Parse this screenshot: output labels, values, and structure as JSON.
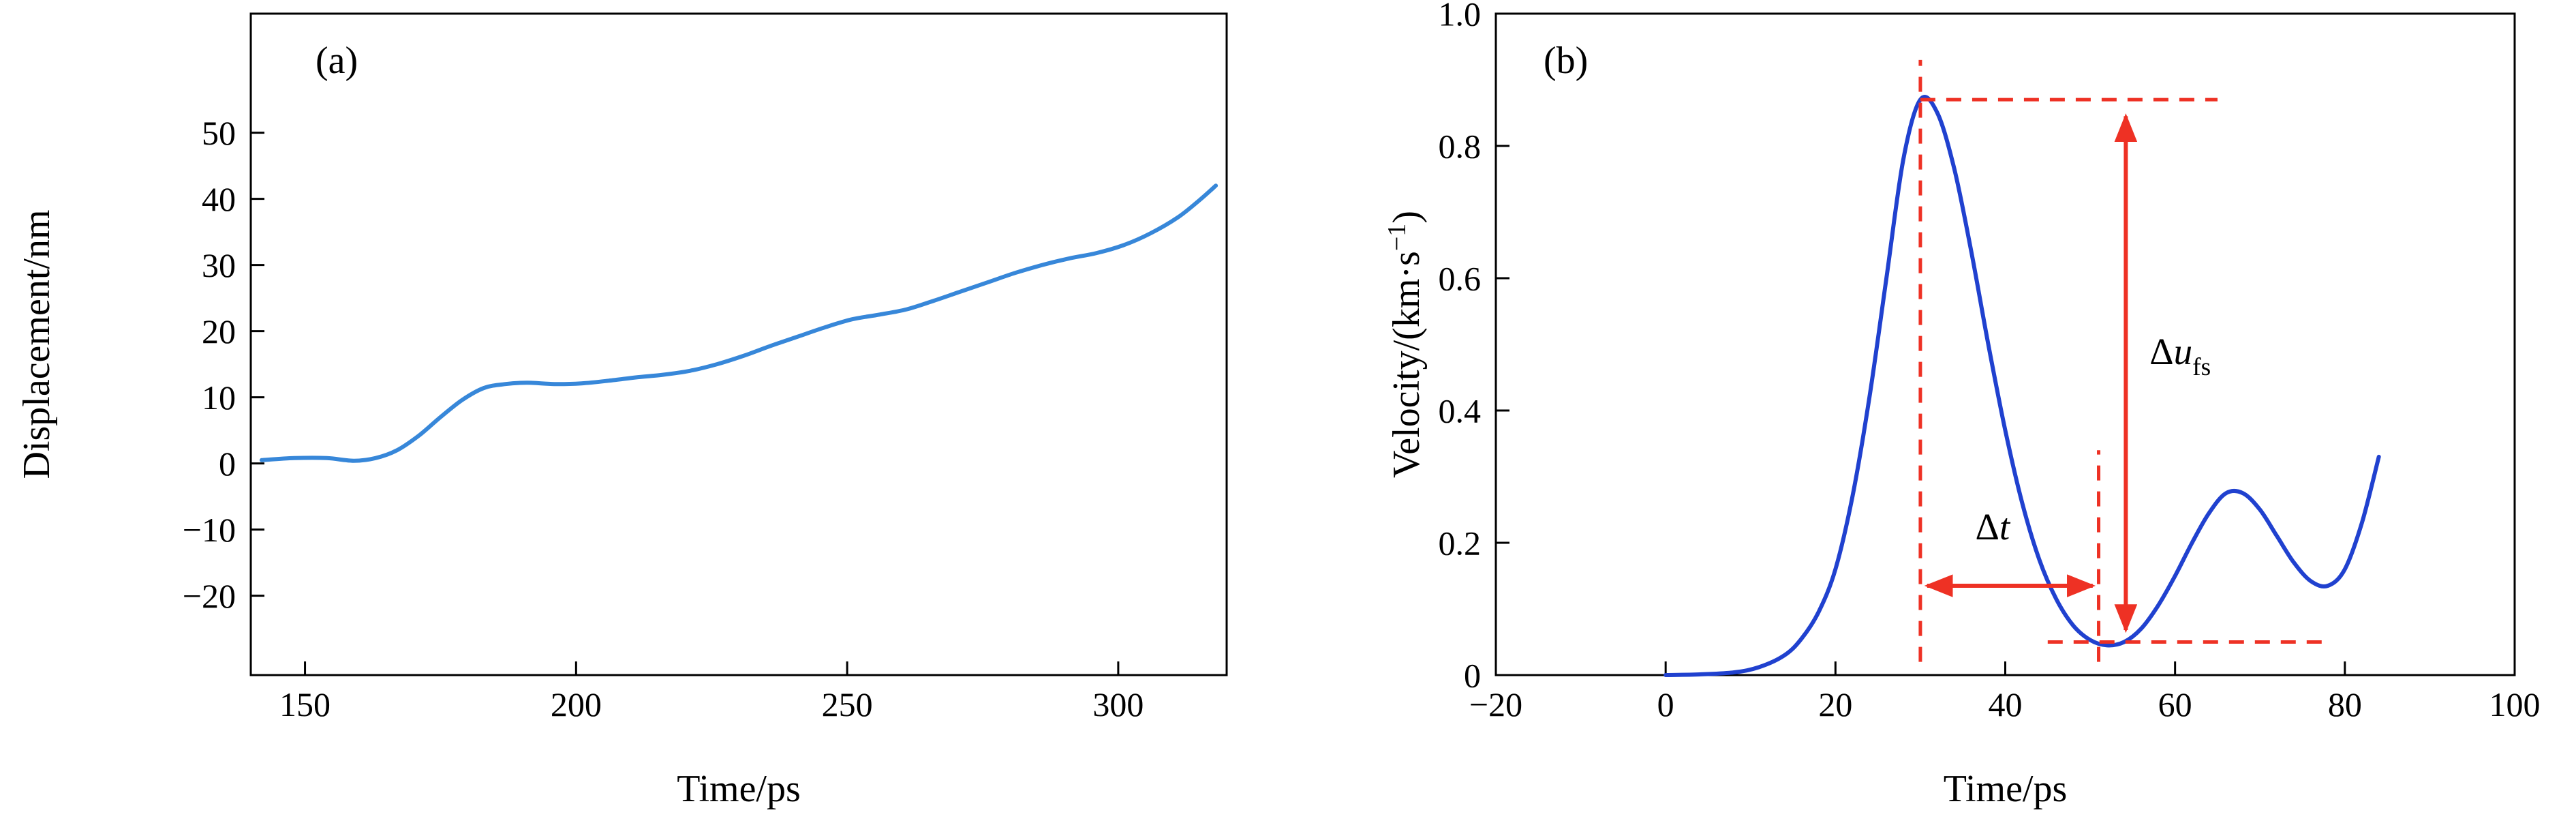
{
  "figure": {
    "background": "#ffffff",
    "panel_count": 2
  },
  "chart_data": [
    {
      "id": "a",
      "type": "line",
      "panel_label": "(a)",
      "xlabel": "Time/ps",
      "ylabel": "Displacement/nm",
      "xlim": [
        140,
        320
      ],
      "ylim": [
        -32,
        68
      ],
      "xticks": [
        {
          "v": 150,
          "label": "150"
        },
        {
          "v": 200,
          "label": "200"
        },
        {
          "v": 250,
          "label": "250"
        },
        {
          "v": 300,
          "label": "300"
        }
      ],
      "yticks": [
        {
          "v": -20,
          "label": "−20"
        },
        {
          "v": -10,
          "label": "−10"
        },
        {
          "v": 0,
          "label": "0"
        },
        {
          "v": 10,
          "label": "10"
        },
        {
          "v": 20,
          "label": "20"
        },
        {
          "v": 30,
          "label": "30"
        },
        {
          "v": 40,
          "label": "40"
        },
        {
          "v": 50,
          "label": "50"
        }
      ],
      "grid": false,
      "legend": null,
      "line_color": "#3787d9",
      "series": [
        {
          "name": "displacement",
          "x": [
            142,
            148,
            154,
            159,
            163,
            167,
            171,
            175,
            179,
            183,
            187,
            191,
            196,
            201,
            206,
            211,
            216,
            221,
            226,
            231,
            236,
            241,
            246,
            251,
            256,
            261,
            266,
            271,
            276,
            281,
            286,
            291,
            296,
            301,
            306,
            311,
            315,
            318
          ],
          "y": [
            0.5,
            0.8,
            0.8,
            0.4,
            0.8,
            2.0,
            4.2,
            7.0,
            9.6,
            11.4,
            12.0,
            12.2,
            12.0,
            12.1,
            12.5,
            13.0,
            13.4,
            14.0,
            15.0,
            16.3,
            17.8,
            19.2,
            20.6,
            21.8,
            22.5,
            23.3,
            24.6,
            26.0,
            27.4,
            28.8,
            30.0,
            31.0,
            31.8,
            33.0,
            34.8,
            37.2,
            39.8,
            42.0
          ]
        }
      ]
    },
    {
      "id": "b",
      "type": "line",
      "panel_label": "(b)",
      "xlabel": "Time/ps",
      "ylabel": "Velocity/(km·s⁻¹)",
      "ylabel_parts": [
        {
          "t": "Velocity/(km·s"
        },
        {
          "t": "−1",
          "sup": true
        },
        {
          "t": ")"
        }
      ],
      "xlim": [
        -20,
        100
      ],
      "ylim": [
        0,
        1.0
      ],
      "xticks": [
        {
          "v": -20,
          "label": "−20"
        },
        {
          "v": 0,
          "label": "0"
        },
        {
          "v": 20,
          "label": "20"
        },
        {
          "v": 40,
          "label": "40"
        },
        {
          "v": 60,
          "label": "60"
        },
        {
          "v": 80,
          "label": "80"
        },
        {
          "v": 100,
          "label": "100"
        }
      ],
      "yticks": [
        {
          "v": 0,
          "label": "0"
        },
        {
          "v": 0.2,
          "label": "0.2"
        },
        {
          "v": 0.4,
          "label": "0.4"
        },
        {
          "v": 0.6,
          "label": "0.6"
        },
        {
          "v": 0.8,
          "label": "0.8"
        },
        {
          "v": 1.0,
          "label": "1.0"
        }
      ],
      "grid": false,
      "legend": null,
      "line_color": "#2041cf",
      "annotation_color": "#ee3124",
      "series": [
        {
          "name": "velocity",
          "x": [
            0,
            4,
            8,
            11,
            14,
            16,
            18,
            20,
            22,
            24,
            26,
            28,
            30,
            32,
            34,
            36,
            38,
            40,
            42,
            44,
            46,
            48,
            50,
            52,
            54,
            56,
            58,
            60,
            62,
            64,
            66,
            68,
            70,
            72,
            74,
            76,
            78,
            80,
            82,
            84
          ],
          "y": [
            0,
            0.001,
            0.004,
            0.012,
            0.03,
            0.055,
            0.095,
            0.16,
            0.27,
            0.42,
            0.6,
            0.78,
            0.87,
            0.85,
            0.765,
            0.64,
            0.5,
            0.37,
            0.26,
            0.175,
            0.115,
            0.075,
            0.053,
            0.045,
            0.05,
            0.07,
            0.105,
            0.15,
            0.2,
            0.245,
            0.275,
            0.275,
            0.25,
            0.21,
            0.17,
            0.142,
            0.135,
            0.16,
            0.23,
            0.33
          ]
        }
      ],
      "annotations": {
        "dashed_lines": [
          {
            "o": "v",
            "x": 30,
            "y1": 0.02,
            "y2": 0.93
          },
          {
            "o": "h",
            "y": 0.87,
            "x1": 30,
            "x2": 65
          },
          {
            "o": "v",
            "x": 51,
            "y1": 0.02,
            "y2": 0.34
          },
          {
            "o": "h",
            "y": 0.05,
            "x1": 45,
            "x2": 78.5
          }
        ],
        "arrows": [
          {
            "o": "h",
            "y": 0.135,
            "x1": 30.8,
            "x2": 50.3,
            "name": "delta-t-arrow"
          },
          {
            "o": "v",
            "x": 54.2,
            "y1": 0.845,
            "y2": 0.068,
            "name": "delta-u-arrow"
          }
        ],
        "labels": [
          {
            "text": "Δt",
            "parts": [
              {
                "t": "Δ"
              },
              {
                "t": "t",
                "italic": true
              }
            ],
            "x": 38.5,
            "y": 0.205,
            "anchor": "middle",
            "name": "delta-t-label"
          },
          {
            "text": "Δufs",
            "parts": [
              {
                "t": "Δ"
              },
              {
                "t": "u",
                "italic": true
              },
              {
                "t": "fs",
                "sub": true
              }
            ],
            "x": 57,
            "y": 0.47,
            "anchor": "start",
            "name": "delta-u-label"
          }
        ]
      }
    }
  ]
}
